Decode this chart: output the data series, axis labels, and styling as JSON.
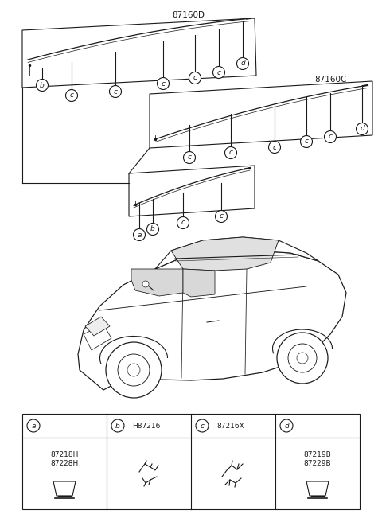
{
  "bg_color": "#ffffff",
  "title_d": "87160D",
  "title_c": "87160C",
  "part_a_codes": "87218H\n87228H",
  "part_b_header": "H87216",
  "part_c_header": "87216X",
  "part_d_codes": "87219B\n87229B",
  "figsize": [
    4.8,
    6.56
  ],
  "dpi": 100,
  "callout_r": 7.5,
  "callout_fs": 6.5,
  "line_color": "#1a1a1a",
  "lw": 0.8
}
